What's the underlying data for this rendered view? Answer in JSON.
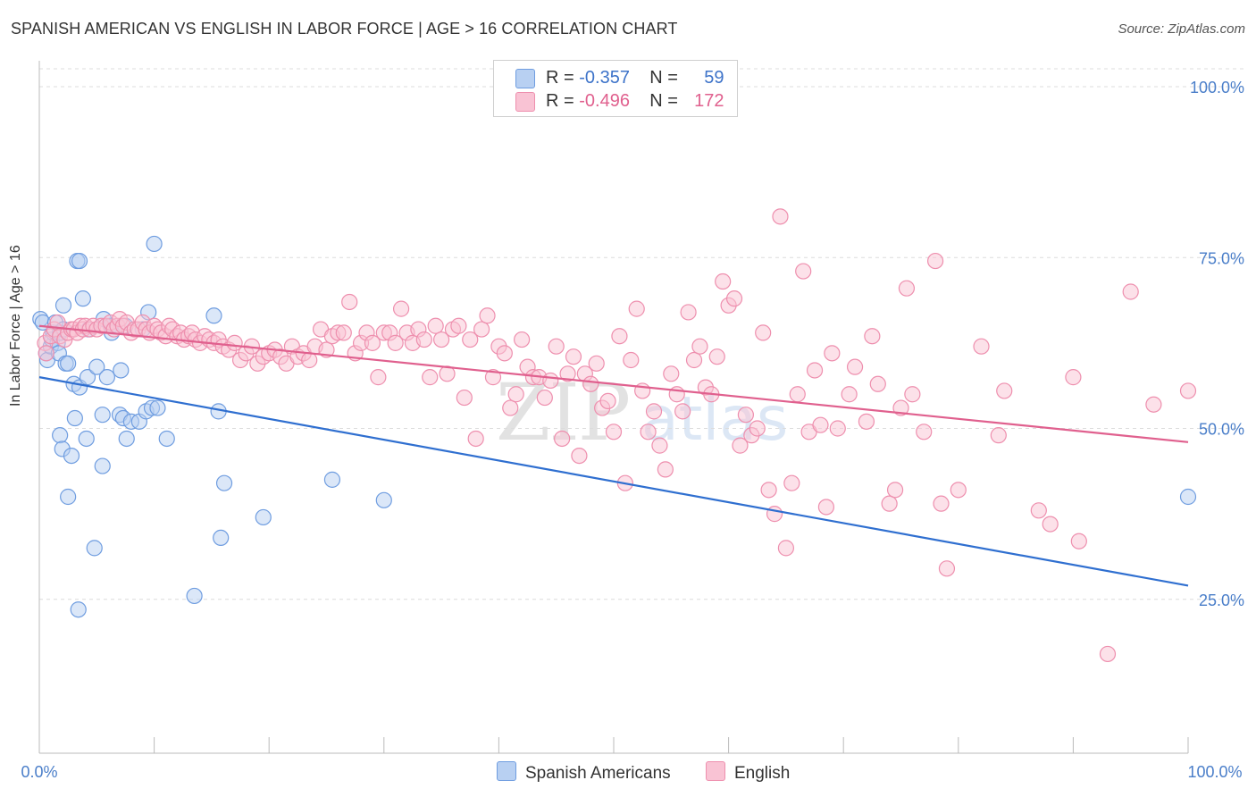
{
  "title": "SPANISH AMERICAN VS ENGLISH IN LABOR FORCE | AGE > 16 CORRELATION CHART",
  "source": "Source: ZipAtlas.com",
  "colors": {
    "blue_fill": "#b8d0f2",
    "blue_stroke": "#6f9de0",
    "blue_line": "#2f6fd0",
    "pink_fill": "#f9c3d4",
    "pink_stroke": "#ee8fae",
    "pink_line": "#e0608e",
    "grid": "#dcdcdc",
    "axis_text": "#4a7ec9"
  },
  "legend": {
    "r_label": "R =",
    "n_label": "N =",
    "series": [
      {
        "r": "-0.357",
        "n": "59"
      },
      {
        "r": "-0.496",
        "n": "172"
      }
    ]
  },
  "chart_data": {
    "type": "scatter",
    "xlabel": "",
    "ylabel": "In Labor Force | Age > 16",
    "xlim": [
      0,
      100
    ],
    "ylim": [
      0,
      100
    ],
    "x_tick_labels": {
      "left": "0.0%",
      "right": "100.0%"
    },
    "y_ticks": [
      25,
      50,
      75,
      100
    ],
    "y_tick_labels": [
      "25.0%",
      "50.0%",
      "75.0%",
      "100.0%"
    ],
    "grid": true,
    "legend_position": "bottom",
    "series": [
      {
        "name": "Spanish Americans",
        "trend": {
          "x": [
            0,
            100
          ],
          "y": [
            57.5,
            27.0
          ]
        },
        "points": [
          [
            0.1,
            66.0
          ],
          [
            0.3,
            65.5
          ],
          [
            0.6,
            61.0
          ],
          [
            0.7,
            60.0
          ],
          [
            1.0,
            62.0
          ],
          [
            1.1,
            63.0
          ],
          [
            1.2,
            64.0
          ],
          [
            1.4,
            65.5
          ],
          [
            1.6,
            62.5
          ],
          [
            1.7,
            61.0
          ],
          [
            1.8,
            64.0
          ],
          [
            2.1,
            64.5
          ],
          [
            2.1,
            68.0
          ],
          [
            2.3,
            59.5
          ],
          [
            2.5,
            59.5
          ],
          [
            1.8,
            49.0
          ],
          [
            2.0,
            47.0
          ],
          [
            2.5,
            40.0
          ],
          [
            2.8,
            46.0
          ],
          [
            3.0,
            56.5
          ],
          [
            3.1,
            51.5
          ],
          [
            3.3,
            74.5
          ],
          [
            3.5,
            74.5
          ],
          [
            3.4,
            23.5
          ],
          [
            3.5,
            56.0
          ],
          [
            3.8,
            69.0
          ],
          [
            4.1,
            48.5
          ],
          [
            4.2,
            57.5
          ],
          [
            4.3,
            64.5
          ],
          [
            4.8,
            32.5
          ],
          [
            5.0,
            59.0
          ],
          [
            5.5,
            44.5
          ],
          [
            5.5,
            52.0
          ],
          [
            5.9,
            57.5
          ],
          [
            5.6,
            66.0
          ],
          [
            6.2,
            65.0
          ],
          [
            6.3,
            64.0
          ],
          [
            7.0,
            52.0
          ],
          [
            7.1,
            58.5
          ],
          [
            7.3,
            51.5
          ],
          [
            7.5,
            65.0
          ],
          [
            7.6,
            48.5
          ],
          [
            8.0,
            51.0
          ],
          [
            8.7,
            51.0
          ],
          [
            9.0,
            64.5
          ],
          [
            9.3,
            52.5
          ],
          [
            9.5,
            67.0
          ],
          [
            9.8,
            53.0
          ],
          [
            10.0,
            77.0
          ],
          [
            10.3,
            53.0
          ],
          [
            11.1,
            48.5
          ],
          [
            13.5,
            25.5
          ],
          [
            15.2,
            66.5
          ],
          [
            15.6,
            52.5
          ],
          [
            15.8,
            34.0
          ],
          [
            16.1,
            42.0
          ],
          [
            19.5,
            37.0
          ],
          [
            25.5,
            42.5
          ],
          [
            30.0,
            39.5
          ],
          [
            100.0,
            40.0
          ]
        ]
      },
      {
        "name": "English",
        "trend": {
          "x": [
            0,
            100
          ],
          "y": [
            65.0,
            48.0
          ]
        },
        "points": [
          [
            0.5,
            62.5
          ],
          [
            0.6,
            61.0
          ],
          [
            1.0,
            63.5
          ],
          [
            1.3,
            64.5
          ],
          [
            1.6,
            65.5
          ],
          [
            1.8,
            63.5
          ],
          [
            2.2,
            63.0
          ],
          [
            2.5,
            64.0
          ],
          [
            2.8,
            64.5
          ],
          [
            3.0,
            64.5
          ],
          [
            3.3,
            64.0
          ],
          [
            3.6,
            65.0
          ],
          [
            3.8,
            64.5
          ],
          [
            4.0,
            65.0
          ],
          [
            4.4,
            64.5
          ],
          [
            4.7,
            65.0
          ],
          [
            5.0,
            64.5
          ],
          [
            5.4,
            65.0
          ],
          [
            5.8,
            65.0
          ],
          [
            6.2,
            65.5
          ],
          [
            6.5,
            64.5
          ],
          [
            6.8,
            65.0
          ],
          [
            7.0,
            66.0
          ],
          [
            7.3,
            65.0
          ],
          [
            7.6,
            65.5
          ],
          [
            8.0,
            64.0
          ],
          [
            8.3,
            64.5
          ],
          [
            8.6,
            64.5
          ],
          [
            9.0,
            65.5
          ],
          [
            9.3,
            64.5
          ],
          [
            9.6,
            64.0
          ],
          [
            10.0,
            65.0
          ],
          [
            10.3,
            64.5
          ],
          [
            10.6,
            64.0
          ],
          [
            11.0,
            63.5
          ],
          [
            11.3,
            65.0
          ],
          [
            11.6,
            64.5
          ],
          [
            12.0,
            63.5
          ],
          [
            12.3,
            64.0
          ],
          [
            12.6,
            63.0
          ],
          [
            13.0,
            63.5
          ],
          [
            13.3,
            64.0
          ],
          [
            13.6,
            63.0
          ],
          [
            14.0,
            62.5
          ],
          [
            14.4,
            63.5
          ],
          [
            14.8,
            63.0
          ],
          [
            15.2,
            62.5
          ],
          [
            15.6,
            63.0
          ],
          [
            16.0,
            62.0
          ],
          [
            16.5,
            61.5
          ],
          [
            17.0,
            62.5
          ],
          [
            17.5,
            60.0
          ],
          [
            18.0,
            61.0
          ],
          [
            18.5,
            62.0
          ],
          [
            19.0,
            59.5
          ],
          [
            19.5,
            60.5
          ],
          [
            20.0,
            61.0
          ],
          [
            20.5,
            61.5
          ],
          [
            21.0,
            60.5
          ],
          [
            21.5,
            59.5
          ],
          [
            22.0,
            62.0
          ],
          [
            22.5,
            60.5
          ],
          [
            23.0,
            61.0
          ],
          [
            23.5,
            60.0
          ],
          [
            24.0,
            62.0
          ],
          [
            24.5,
            64.5
          ],
          [
            25.0,
            61.5
          ],
          [
            25.5,
            63.5
          ],
          [
            26.0,
            64.0
          ],
          [
            26.5,
            64.0
          ],
          [
            27.0,
            68.5
          ],
          [
            27.5,
            61.0
          ],
          [
            28.0,
            62.5
          ],
          [
            28.5,
            64.0
          ],
          [
            29.0,
            62.5
          ],
          [
            29.5,
            57.5
          ],
          [
            30.0,
            64.0
          ],
          [
            30.5,
            64.0
          ],
          [
            31.0,
            62.5
          ],
          [
            31.5,
            67.5
          ],
          [
            32.0,
            64.0
          ],
          [
            32.5,
            62.5
          ],
          [
            33.0,
            64.5
          ],
          [
            33.5,
            63.0
          ],
          [
            34.0,
            57.5
          ],
          [
            34.5,
            65.0
          ],
          [
            35.0,
            63.0
          ],
          [
            35.5,
            58.0
          ],
          [
            36.0,
            64.5
          ],
          [
            36.5,
            65.0
          ],
          [
            37.0,
            54.5
          ],
          [
            37.5,
            63.0
          ],
          [
            38.0,
            48.5
          ],
          [
            38.5,
            64.5
          ],
          [
            39.0,
            66.5
          ],
          [
            39.5,
            57.5
          ],
          [
            40.0,
            62.0
          ],
          [
            40.5,
            61.0
          ],
          [
            41.0,
            53.0
          ],
          [
            41.5,
            55.0
          ],
          [
            42.0,
            63.0
          ],
          [
            42.5,
            59.0
          ],
          [
            43.0,
            57.5
          ],
          [
            43.5,
            57.5
          ],
          [
            44.0,
            54.5
          ],
          [
            44.5,
            57.0
          ],
          [
            45.0,
            62.0
          ],
          [
            45.5,
            48.5
          ],
          [
            46.0,
            58.0
          ],
          [
            46.5,
            60.5
          ],
          [
            47.0,
            46.0
          ],
          [
            47.5,
            58.0
          ],
          [
            48.0,
            56.5
          ],
          [
            48.5,
            59.5
          ],
          [
            49.0,
            53.0
          ],
          [
            49.5,
            54.0
          ],
          [
            50.0,
            49.5
          ],
          [
            50.5,
            63.5
          ],
          [
            51.0,
            42.0
          ],
          [
            51.5,
            60.0
          ],
          [
            52.0,
            67.5
          ],
          [
            52.5,
            55.5
          ],
          [
            53.0,
            49.5
          ],
          [
            53.5,
            52.5
          ],
          [
            54.0,
            47.5
          ],
          [
            54.5,
            44.0
          ],
          [
            55.0,
            58.0
          ],
          [
            55.5,
            55.0
          ],
          [
            56.0,
            52.5
          ],
          [
            56.5,
            67.0
          ],
          [
            57.0,
            60.0
          ],
          [
            57.5,
            62.0
          ],
          [
            58.0,
            56.0
          ],
          [
            58.5,
            55.0
          ],
          [
            59.0,
            60.5
          ],
          [
            59.5,
            71.5
          ],
          [
            60.0,
            68.0
          ],
          [
            60.5,
            69.0
          ],
          [
            61.0,
            47.5
          ],
          [
            61.5,
            52.0
          ],
          [
            62.0,
            49.0
          ],
          [
            62.5,
            50.0
          ],
          [
            63.0,
            64.0
          ],
          [
            63.5,
            41.0
          ],
          [
            64.0,
            37.5
          ],
          [
            64.5,
            81.0
          ],
          [
            65.0,
            32.5
          ],
          [
            65.5,
            42.0
          ],
          [
            66.0,
            55.0
          ],
          [
            66.5,
            73.0
          ],
          [
            67.0,
            49.5
          ],
          [
            67.5,
            58.5
          ],
          [
            68.0,
            50.5
          ],
          [
            68.5,
            38.5
          ],
          [
            69.0,
            61.0
          ],
          [
            69.5,
            50.0
          ],
          [
            70.5,
            55.0
          ],
          [
            71.0,
            59.0
          ],
          [
            72.0,
            51.0
          ],
          [
            72.5,
            63.5
          ],
          [
            73.0,
            56.5
          ],
          [
            74.0,
            39.0
          ],
          [
            74.5,
            41.0
          ],
          [
            75.0,
            53.0
          ],
          [
            75.5,
            70.5
          ],
          [
            76.0,
            55.0
          ],
          [
            77.0,
            49.5
          ],
          [
            78.0,
            74.5
          ],
          [
            78.5,
            39.0
          ],
          [
            79.0,
            29.5
          ],
          [
            80.0,
            41.0
          ],
          [
            83.5,
            49.0
          ],
          [
            87.0,
            38.0
          ],
          [
            88.0,
            36.0
          ],
          [
            90.0,
            57.5
          ],
          [
            93.0,
            17.0
          ],
          [
            95.0,
            70.0
          ],
          [
            97.0,
            53.5
          ],
          [
            100.0,
            55.5
          ],
          [
            84.0,
            55.5
          ],
          [
            82.0,
            62.0
          ],
          [
            90.5,
            33.5
          ]
        ]
      }
    ]
  }
}
